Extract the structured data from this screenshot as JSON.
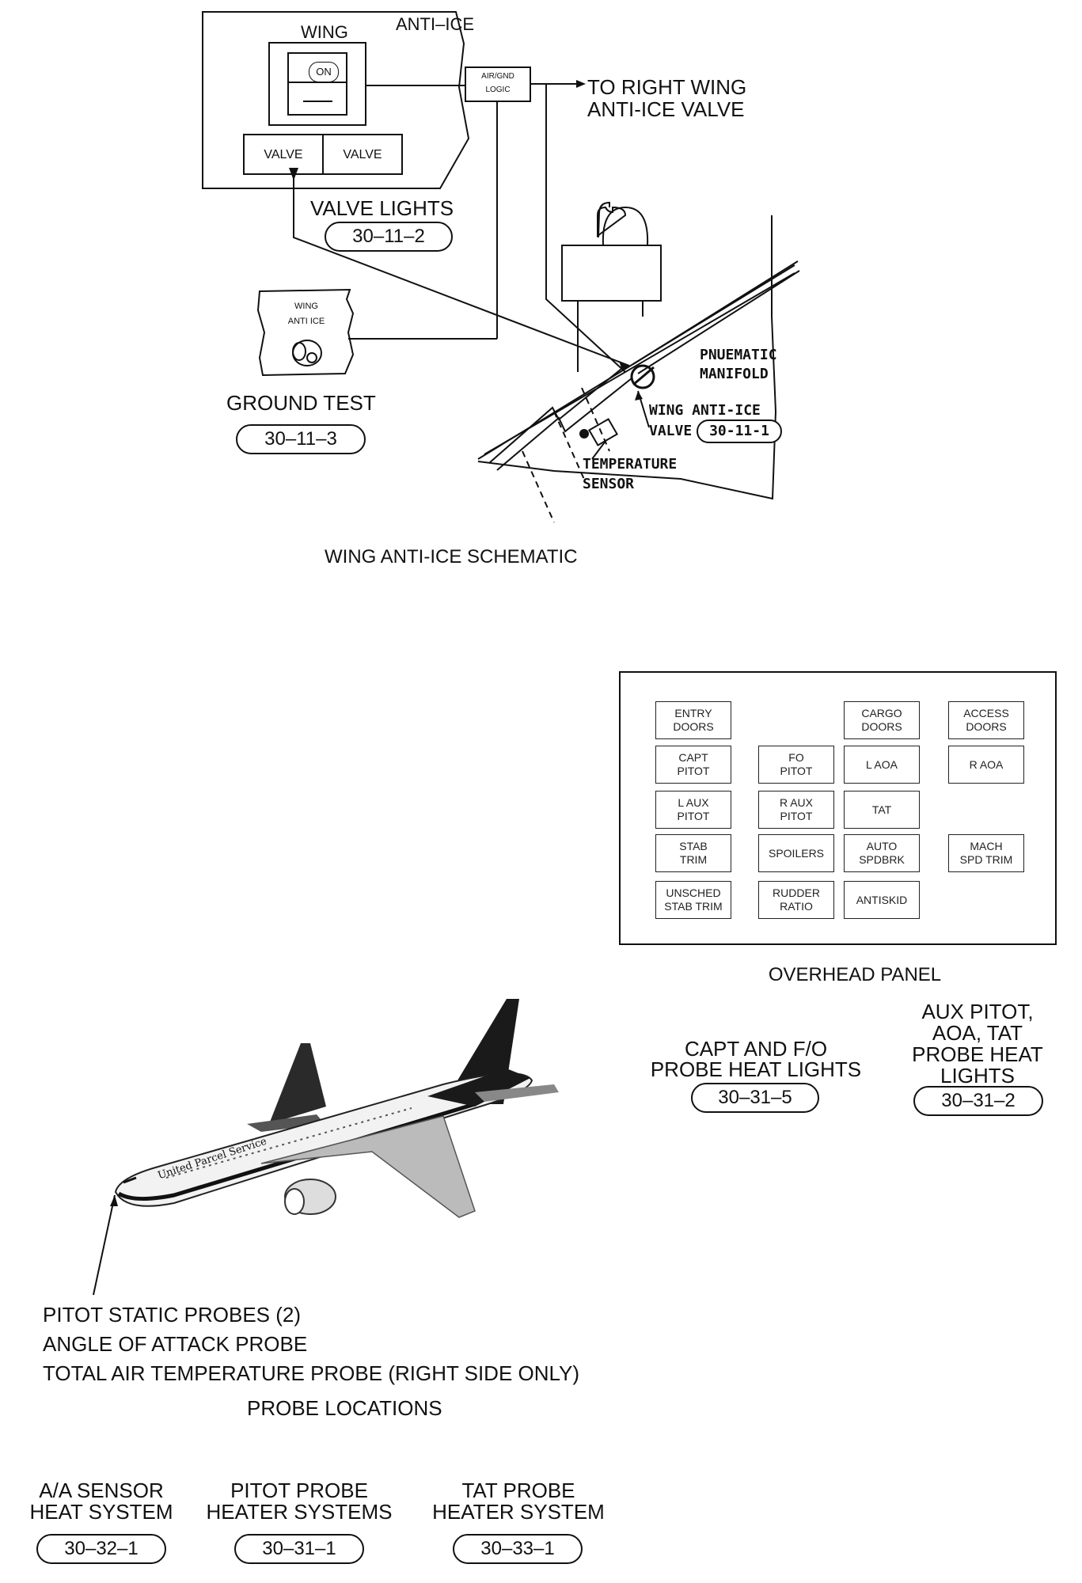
{
  "wing_schematic": {
    "panel_title": "WING",
    "panel_header": "ANTI–ICE",
    "switch_label": "ON",
    "valve_light_left": "VALVE",
    "valve_light_right": "VALVE",
    "air_gnd_line1": "AIR/GND",
    "air_gnd_line2": "LOGIC",
    "right_wing_line1": "TO RIGHT WING",
    "right_wing_line2": "ANTI-ICE VALVE",
    "valve_lights_label": "VALVE LIGHTS",
    "valve_lights_ref": "30–11–2",
    "ground_test_panel_line1": "WING",
    "ground_test_panel_line2": "ANTI ICE",
    "ground_test_label": "GROUND TEST",
    "ground_test_ref": "30–11–3",
    "manifold_line1": "PNUEMATIC",
    "manifold_line2": "MANIFOLD",
    "valve_line1": "WING ANTI-ICE",
    "valve_line2": "VALVE",
    "valve_ref": "30-11-1",
    "sensor_line1": "TEMPERATURE",
    "sensor_line2": "SENSOR",
    "caption": "WING ANTI-ICE SCHEMATIC"
  },
  "overhead_panel": {
    "lights": [
      {
        "id": "entry-doors",
        "text": "ENTRY\nDOORS"
      },
      {
        "id": "cargo-doors",
        "text": "CARGO\nDOORS"
      },
      {
        "id": "access-doors",
        "text": "ACCESS\nDOORS"
      },
      {
        "id": "capt-pitot",
        "text": "CAPT\nPITOT"
      },
      {
        "id": "fo-pitot",
        "text": "FO\nPITOT"
      },
      {
        "id": "l-aoa",
        "text": "L AOA"
      },
      {
        "id": "r-aoa",
        "text": "R AOA"
      },
      {
        "id": "l-aux-pitot",
        "text": "L AUX\nPITOT"
      },
      {
        "id": "r-aux-pitot",
        "text": "R AUX\nPITOT"
      },
      {
        "id": "tat",
        "text": "TAT"
      },
      {
        "id": "stab-trim",
        "text": "STAB\nTRIM"
      },
      {
        "id": "spoilers",
        "text": "SPOILERS"
      },
      {
        "id": "auto-spdbrk",
        "text": "AUTO\nSPDBRK"
      },
      {
        "id": "mach-spd-trim",
        "text": "MACH\nSPD TRIM"
      },
      {
        "id": "unsched-stab-trim",
        "text": "UNSCHED\nSTAB TRIM"
      },
      {
        "id": "rudder-ratio",
        "text": "RUDDER\nRATIO"
      },
      {
        "id": "antiskid",
        "text": "ANTISKID"
      }
    ],
    "caption": "OVERHEAD PANEL",
    "capt_fo_line1": "CAPT AND F/O",
    "capt_fo_line2": "PROBE HEAT LIGHTS",
    "capt_fo_ref": "30–31–5",
    "aux_line1": "AUX PITOT,",
    "aux_line2": "AOA, TAT",
    "aux_line3": "PROBE HEAT",
    "aux_line4": "LIGHTS",
    "aux_ref": "30–31–2"
  },
  "probe_locations": {
    "airplane_livery": "United Parcel Service",
    "line1": "PITOT STATIC PROBES (2)",
    "line2": "ANGLE OF ATTACK PROBE",
    "line3": "TOTAL AIR TEMPERATURE PROBE (RIGHT SIDE ONLY)",
    "caption": "PROBE LOCATIONS"
  },
  "references": [
    {
      "line1": "A/A SENSOR",
      "line2": "HEAT SYSTEM",
      "ref": "30–32–1"
    },
    {
      "line1": "PITOT PROBE",
      "line2": "HEATER SYSTEMS",
      "ref": "30–31–1"
    },
    {
      "line1": "TAT PROBE",
      "line2": "HEATER SYSTEM",
      "ref": "30–33–1"
    }
  ]
}
